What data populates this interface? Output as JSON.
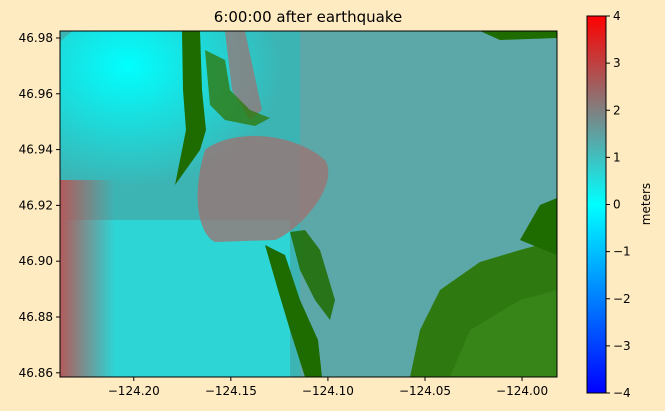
{
  "chart_data": {
    "type": "heatmap",
    "title": "6:00:00 after earthquake",
    "x_ticks": [
      {
        "value": -124.2,
        "label": "−124.20"
      },
      {
        "value": -124.15,
        "label": "−124.15"
      },
      {
        "value": -124.1,
        "label": "−124.10"
      },
      {
        "value": -124.05,
        "label": "−124.05"
      },
      {
        "value": -124.0,
        "label": "−124.00"
      }
    ],
    "y_ticks": [
      {
        "value": 46.98,
        "label": "46.98"
      },
      {
        "value": 46.96,
        "label": "46.96"
      },
      {
        "value": 46.94,
        "label": "46.94"
      },
      {
        "value": 46.92,
        "label": "46.92"
      },
      {
        "value": 46.9,
        "label": "46.90"
      },
      {
        "value": 46.88,
        "label": "46.88"
      },
      {
        "value": 46.86,
        "label": "46.86"
      }
    ],
    "xlim": [
      -124.238,
      -123.982
    ],
    "ylim": [
      46.8585,
      46.9825
    ],
    "colorbar": {
      "label": "meters",
      "min": -4,
      "max": 4,
      "ticks": [
        {
          "value": 4,
          "label": "4"
        },
        {
          "value": 3,
          "label": "3"
        },
        {
          "value": 2,
          "label": "2"
        },
        {
          "value": 1,
          "label": "1"
        },
        {
          "value": 0,
          "label": "0"
        },
        {
          "value": -1,
          "label": "−1"
        },
        {
          "value": -2,
          "label": "−2"
        },
        {
          "value": -3,
          "label": "−3"
        },
        {
          "value": -4,
          "label": "−4"
        }
      ],
      "colors": [
        "#0000FF",
        "#00FFFF",
        "#808080",
        "#FF0000"
      ]
    },
    "dominant_value_range_m": [
      0.5,
      2.5
    ],
    "land_color": "#1E6B00"
  }
}
